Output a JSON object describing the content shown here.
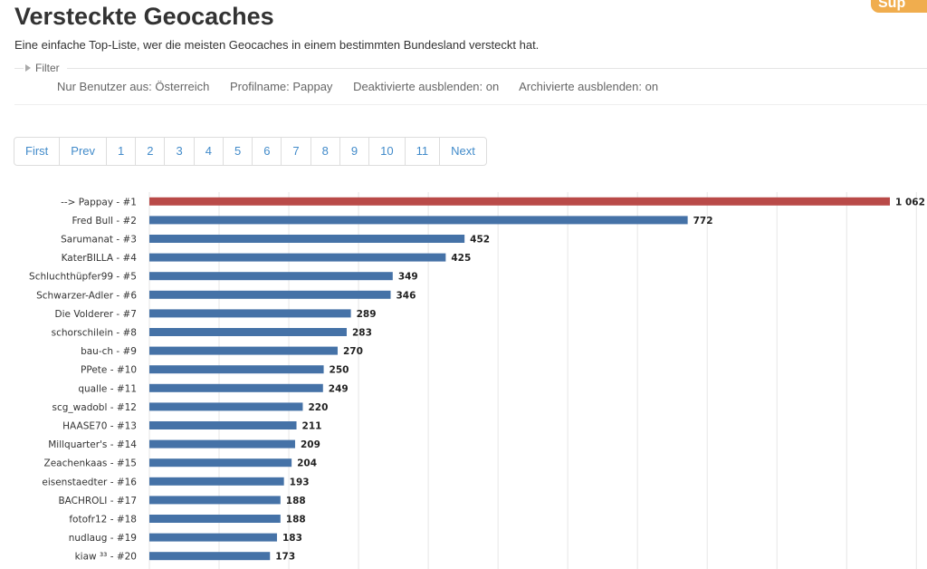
{
  "header": {
    "title": "Versteckte Geocaches",
    "subtitle": "Eine einfache Top-Liste, wer die meisten Geocaches in einem bestimmten Bundesland versteckt hat.",
    "badge": "Sup"
  },
  "filter": {
    "label": "Filter",
    "items": [
      "Nur Benutzer aus: Österreich",
      "Profilname: Pappay",
      "Deaktivierte ausblenden: on",
      "Archivierte ausblenden: on"
    ]
  },
  "pagination": {
    "first": "First",
    "prev": "Prev",
    "pages": [
      "1",
      "2",
      "3",
      "4",
      "5",
      "6",
      "7",
      "8",
      "9",
      "10",
      "11"
    ],
    "next": "Next"
  },
  "colors": {
    "highlight": "#b94a48",
    "bar": "#4572a7",
    "grid": "#e6e6e6"
  },
  "chart_data": {
    "type": "bar",
    "orientation": "horizontal",
    "categories": [
      "--> Pappay - #1",
      "Fred Bull - #2",
      "Sarumanat - #3",
      "KaterBILLA - #4",
      "Schluchthüpfer99 - #5",
      "Schwarzer-Adler - #6",
      "Die Volderer - #7",
      "schorschilein - #8",
      "bau-ch - #9",
      "PPete - #10",
      "qualle - #11",
      "scg_wadobl - #12",
      "HAASE70 - #13",
      "Millquarter's - #14",
      "Zeachenkaas - #15",
      "eisenstaedter - #16",
      "BACHROLI - #17",
      "fotofr12 - #18",
      "nudlaug - #19",
      "kiaw ³³ - #20"
    ],
    "values": [
      1062,
      772,
      452,
      425,
      349,
      346,
      289,
      283,
      270,
      250,
      249,
      220,
      211,
      209,
      204,
      193,
      188,
      188,
      183,
      173
    ],
    "value_labels": [
      "1 062",
      "772",
      "452",
      "425",
      "349",
      "346",
      "289",
      "283",
      "270",
      "250",
      "249",
      "220",
      "211",
      "209",
      "204",
      "193",
      "188",
      "188",
      "183",
      "173"
    ],
    "highlight_index": 0,
    "xlim": [
      0,
      1100
    ],
    "gridline_step": 100,
    "grid": true,
    "title": "",
    "xlabel": "",
    "ylabel": ""
  }
}
